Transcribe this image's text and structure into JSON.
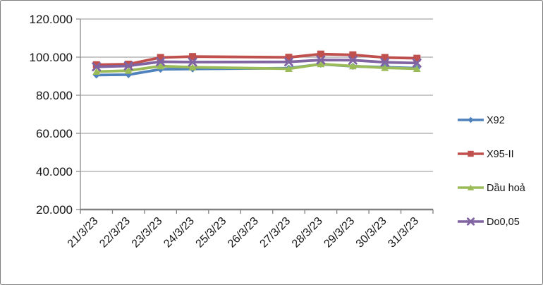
{
  "figure": {
    "background": "#ffffff",
    "border_color": "#7f7f7f",
    "gridline_color": "#a6a6a6",
    "axis_color": "#808080",
    "text_color": "#151515"
  },
  "chart_data": {
    "type": "line",
    "title": "",
    "xlabel": "",
    "ylabel": "",
    "ylim": [
      20000,
      120000
    ],
    "y_tick_step": 20000,
    "y_tick_labels": [
      "120.000",
      "100.000",
      "80.000",
      "60.000",
      "40.000",
      "20.000"
    ],
    "y_tick_values": [
      120000,
      100000,
      80000,
      60000,
      40000,
      20000
    ],
    "grid": true,
    "legend_position": "right",
    "categories": [
      "21/3/23",
      "22/3/23",
      "23/3/23",
      "24/3/23",
      "25/3/23",
      "26/3/23",
      "27/3/23",
      "28/3/23",
      "29/3/23",
      "30/3/23",
      "31/3/23"
    ],
    "missing_data_categories": [
      "25/3/23",
      "26/3/23"
    ],
    "series": [
      {
        "name": "X92",
        "color": "#4F81BD",
        "marker": "diamond",
        "values": [
          90600,
          90800,
          93600,
          93800,
          null,
          null,
          94200,
          96300,
          95200,
          94700,
          94200
        ]
      },
      {
        "name": "X95-II",
        "color": "#C0504D",
        "marker": "square",
        "values": [
          96000,
          96300,
          99800,
          100300,
          null,
          null,
          99900,
          101600,
          101200,
          99800,
          99400
        ]
      },
      {
        "name": "Dầu hoả",
        "color": "#9BBB59",
        "marker": "triangle",
        "values": [
          92400,
          92900,
          95300,
          94700,
          null,
          null,
          93900,
          96400,
          95300,
          94400,
          93900
        ]
      },
      {
        "name": "Do0,05",
        "color": "#8064A2",
        "marker": "x",
        "values": [
          94900,
          95400,
          97600,
          97400,
          null,
          null,
          97500,
          98500,
          98400,
          97300,
          96900
        ]
      }
    ]
  }
}
